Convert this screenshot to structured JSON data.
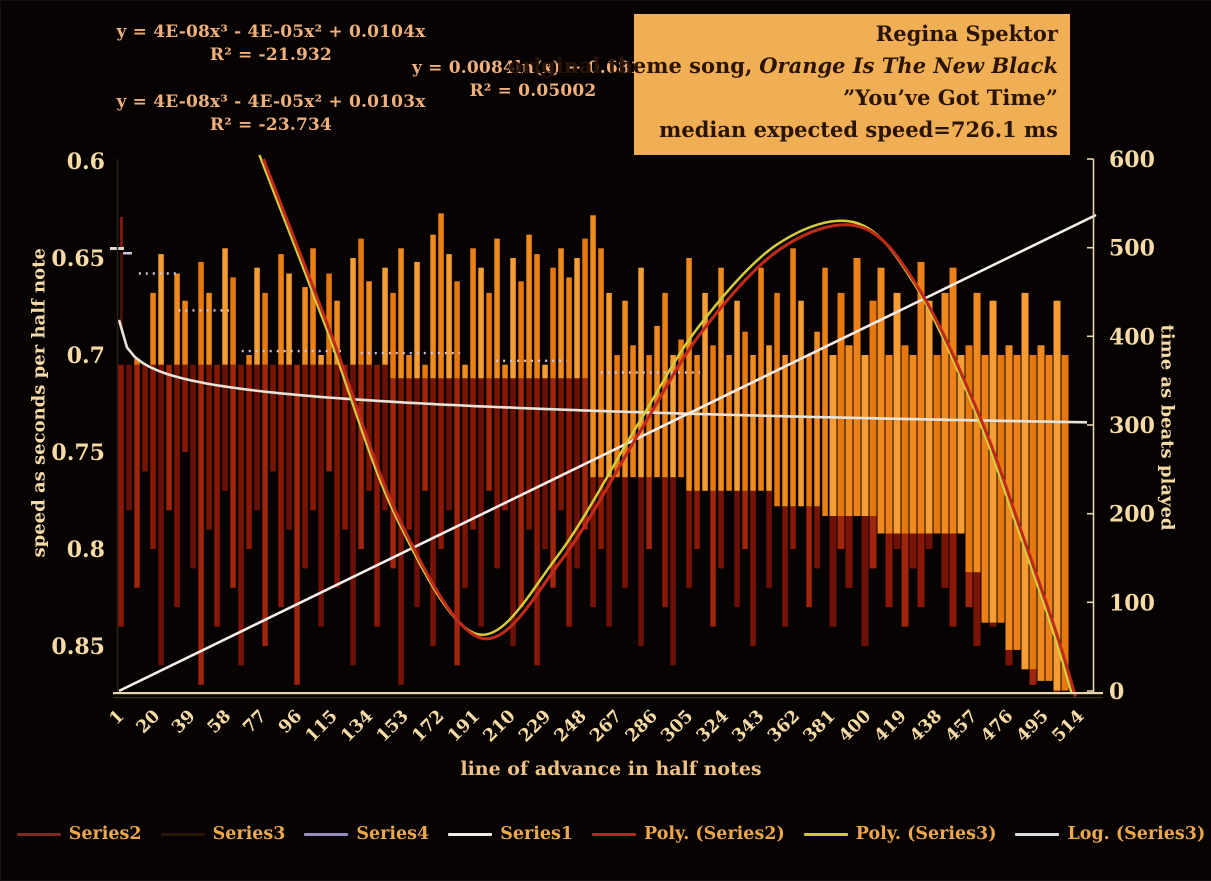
{
  "annotations": {
    "eq_poly2": {
      "line1": "y = 4E-08x³ - 4E-05x² + 0.0104x",
      "line2": "R² = -21.932"
    },
    "eq_poly3": {
      "line1": "y = 4E-08x³ - 4E-05x² + 0.0103x",
      "line2": "R² = -23.734"
    },
    "eq_log": {
      "line1": "y = 0.0084ln(x) + 0.6819",
      "line2": "R² = 0.05002"
    }
  },
  "title_box": {
    "artist": "Regina Spektor",
    "line2_prefix": "original theme song,",
    "line2_italic": "Orange Is The New Black",
    "line3": "”You’ve Got Time”",
    "line4": "median expected speed=726.1 ms",
    "bg_color": "#f0ae55",
    "text_color": "#2a1406"
  },
  "axes": {
    "left_title": "speed as seconds per half note",
    "right_title": "time as beats played",
    "x_title": "line of advance in half notes"
  },
  "legend": [
    {
      "label": "Series2",
      "color": "#7c2a24"
    },
    {
      "label": "Series3",
      "color": "#2a1605"
    },
    {
      "label": "Series4",
      "color": "#9b8ac6"
    },
    {
      "label": "Series1",
      "color": "#f2eae6"
    },
    {
      "label": "Poly. (Series2)",
      "color": "#b5281e"
    },
    {
      "label": "Poly. (Series3)",
      "color": "#cfc93f"
    },
    {
      "label": "Log. (Series3)",
      "color": "#d9dcd8"
    }
  ],
  "chart_data": {
    "type": "combo-bar-line",
    "title": "Regina Spektor original theme song, Orange Is The New Black — You've Got Time",
    "xlabel": "line of advance in half notes",
    "ylabel_left": "speed as seconds per half note",
    "ylabel_right": "time as beats played",
    "x_ticks": [
      1,
      20,
      39,
      58,
      77,
      96,
      115,
      134,
      153,
      172,
      191,
      210,
      229,
      248,
      267,
      286,
      305,
      324,
      343,
      362,
      381,
      400,
      419,
      438,
      457,
      476,
      495,
      514
    ],
    "x_range": [
      1,
      533
    ],
    "y_left": {
      "ticks": [
        0.6,
        0.65,
        0.7,
        0.75,
        0.8,
        0.85
      ],
      "range": [
        0.6,
        0.873
      ],
      "reversed": true
    },
    "y_right": {
      "ticks": [
        600,
        500,
        400,
        300,
        200,
        100,
        0
      ],
      "range": [
        0,
        600
      ]
    },
    "bars": {
      "orange_top": [
        0.705,
        0.705,
        0.702,
        0.705,
        0.668,
        0.648,
        0.705,
        0.658,
        0.672,
        0.705,
        0.652,
        0.668,
        0.705,
        0.645,
        0.66,
        0.705,
        0.7,
        0.655,
        0.668,
        0.705,
        0.648,
        0.658,
        0.705,
        0.665,
        0.645,
        0.7,
        0.658,
        0.672,
        0.705,
        0.65,
        0.64,
        0.662,
        0.705,
        0.655,
        0.668,
        0.645,
        0.7,
        0.652,
        0.705,
        0.638,
        0.627,
        0.648,
        0.662,
        0.705,
        0.645,
        0.655,
        0.668,
        0.64,
        0.705,
        0.65,
        0.662,
        0.638,
        0.648,
        0.705,
        0.655,
        0.645,
        0.66,
        0.65,
        0.64,
        0.628,
        0.645,
        0.668,
        0.7,
        0.672,
        0.695,
        0.655,
        0.7,
        0.685,
        0.668,
        0.7,
        0.692,
        0.65,
        0.7,
        0.668,
        0.695,
        0.655,
        0.7,
        0.672,
        0.688,
        0.7,
        0.655,
        0.695,
        0.668,
        0.7,
        0.645,
        0.672,
        0.7,
        0.688,
        0.655,
        0.7,
        0.668,
        0.695,
        0.65,
        0.7,
        0.672,
        0.655,
        0.7,
        0.668,
        0.695,
        0.7,
        0.652,
        0.672,
        0.7,
        0.668,
        0.655,
        0.7,
        0.695,
        0.668,
        0.7,
        0.672,
        0.7,
        0.695,
        0.7,
        0.668,
        0.7,
        0.695,
        0.7,
        0.672,
        0.7,
        0.695
      ],
      "orange_bottom": [
        0.705,
        0.705,
        0.705,
        0.705,
        0.705,
        0.705,
        0.705,
        0.705,
        0.705,
        0.705,
        0.705,
        0.705,
        0.705,
        0.705,
        0.705,
        0.705,
        0.705,
        0.705,
        0.705,
        0.705,
        0.705,
        0.705,
        0.705,
        0.705,
        0.705,
        0.705,
        0.705,
        0.705,
        0.705,
        0.705,
        0.705,
        0.705,
        0.705,
        0.705,
        0.712,
        0.712,
        0.712,
        0.712,
        0.712,
        0.712,
        0.712,
        0.712,
        0.712,
        0.712,
        0.712,
        0.712,
        0.712,
        0.712,
        0.712,
        0.712,
        0.712,
        0.712,
        0.712,
        0.712,
        0.712,
        0.712,
        0.712,
        0.712,
        0.712,
        0.763,
        0.763,
        0.763,
        0.763,
        0.763,
        0.763,
        0.763,
        0.763,
        0.763,
        0.763,
        0.763,
        0.763,
        0.77,
        0.77,
        0.77,
        0.77,
        0.77,
        0.77,
        0.77,
        0.77,
        0.77,
        0.77,
        0.77,
        0.778,
        0.778,
        0.778,
        0.778,
        0.778,
        0.778,
        0.783,
        0.783,
        0.783,
        0.783,
        0.783,
        0.783,
        0.783,
        0.792,
        0.792,
        0.792,
        0.792,
        0.792,
        0.792,
        0.792,
        0.792,
        0.792,
        0.792,
        0.792,
        0.812,
        0.812,
        0.838,
        0.838,
        0.838,
        0.852,
        0.852,
        0.862,
        0.862,
        0.868,
        0.868,
        0.873,
        0.873
      ],
      "red_bottom": [
        0.84,
        0.78,
        0.82,
        0.76,
        0.8,
        0.86,
        0.78,
        0.83,
        0.75,
        0.81,
        0.87,
        0.79,
        0.84,
        0.77,
        0.82,
        0.86,
        0.8,
        0.78,
        0.85,
        0.76,
        0.83,
        0.79,
        0.87,
        0.81,
        0.78,
        0.84,
        0.76,
        0.82,
        0.79,
        0.86,
        0.8,
        0.77,
        0.84,
        0.78,
        0.81,
        0.87,
        0.79,
        0.83,
        0.77,
        0.85,
        0.8,
        0.78,
        0.86,
        0.82,
        0.79,
        0.84,
        0.77,
        0.81,
        0.78,
        0.85,
        0.83,
        0.79,
        0.86,
        0.8,
        0.82,
        0.78,
        0.84,
        0.81,
        0.79,
        0.83,
        0.8,
        0.84,
        0,
        0.82,
        0,
        0.85,
        0.8,
        0,
        0.83,
        0.86,
        0,
        0.82,
        0.8,
        0,
        0.84,
        0.81,
        0,
        0.83,
        0.8,
        0.85,
        0,
        0.82,
        0,
        0.84,
        0.8,
        0,
        0.83,
        0.81,
        0,
        0.84,
        0.8,
        0.82,
        0,
        0.85,
        0.81,
        0,
        0.83,
        0.8,
        0.84,
        0.81,
        0.83,
        0.8,
        0,
        0.82,
        0.84,
        0,
        0.83,
        0.85,
        0.8,
        0.84,
        0,
        0.86,
        0.84,
        0,
        0.87,
        0.86,
        0,
        0.875,
        0.87,
        0.875
      ]
    },
    "series1_line": {
      "name": "Series1",
      "points": [
        [
          1,
          0
        ],
        [
          533,
          528
        ]
      ],
      "axis": "right"
    },
    "log_trend": {
      "name": "Log. (Series3)",
      "a": 0.0084,
      "b": 0.6819
    },
    "poly_trend_points": [
      [
        81,
        0.599
      ],
      [
        118,
        0.688
      ],
      [
        157,
        0.786
      ],
      [
        202,
        0.846
      ],
      [
        246,
        0.806
      ],
      [
        290,
        0.739
      ],
      [
        324,
        0.688
      ],
      [
        368,
        0.645
      ],
      [
        412,
        0.634
      ],
      [
        445,
        0.667
      ],
      [
        479,
        0.734
      ],
      [
        501,
        0.791
      ],
      [
        520,
        0.842
      ],
      [
        531,
        0.876
      ]
    ],
    "dotted_steps": [
      [
        12,
        33,
        0.658
      ],
      [
        34,
        62,
        0.677
      ],
      [
        69,
        124,
        0.698
      ],
      [
        135,
        190,
        0.699
      ],
      [
        210,
        249,
        0.703
      ],
      [
        268,
        323,
        0.709
      ]
    ],
    "colors": {
      "bar_oranges": [
        "#ee8115",
        "#f59c33",
        "#e8780e",
        "#f08a1e"
      ],
      "bar_reds": [
        "#8c1707",
        "#6d1106",
        "#a0240e",
        "#7a1505"
      ],
      "poly2_curve": "#bf2a1b",
      "poly3_curve": "#d2cc3e",
      "log_curve": "#e7e3d9",
      "series1_line": "#f8ecea",
      "series4_dots": "#cfc3dc",
      "axis_line": "#e8d6ae",
      "tick_text": "#f6dba6"
    }
  }
}
